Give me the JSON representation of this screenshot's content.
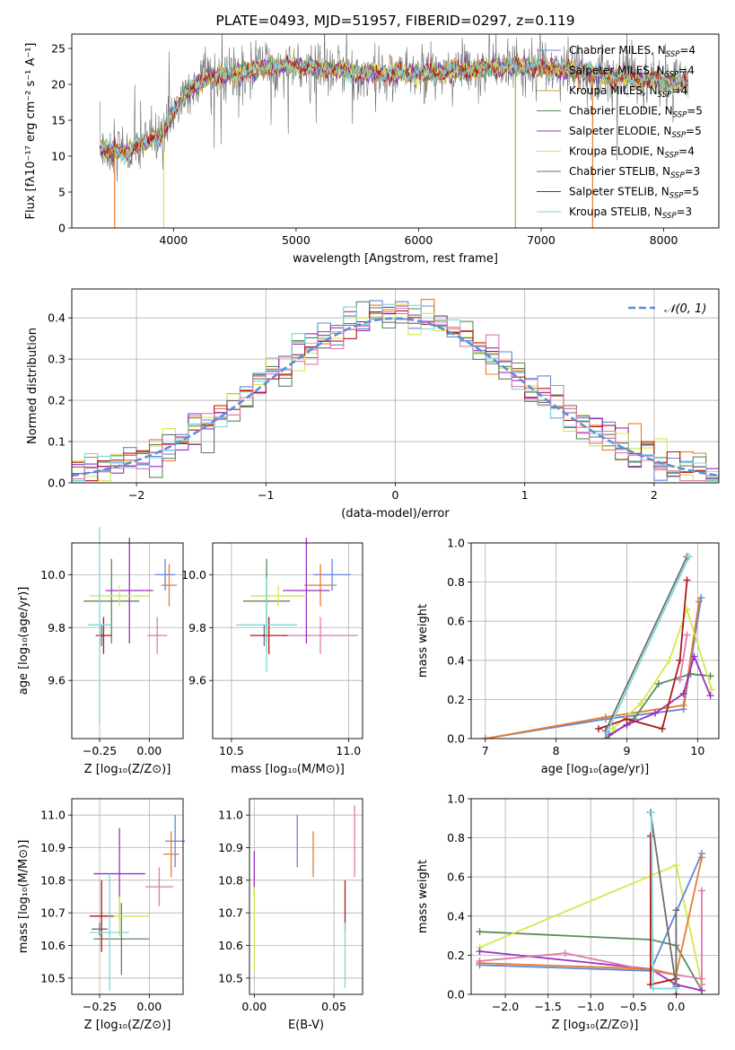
{
  "title": "PLATE=0493, MJD=51957, FIBERID=0297, z=0.119",
  "colors": {
    "Chabrier MILES": "#5f86d6",
    "Salpeter MILES": "#e87b2c",
    "Kroupa MILES": "#c9a236",
    "Chabrier ELODIE": "#5a8a5a",
    "Salpeter ELODIE": "#9b2fc0",
    "Kroupa ELODIE": "#d4e84a",
    "Chabrier STELIB": "#6e6e6e",
    "Salpeter STELIB": "#b01818",
    "Kroupa STELIB": "#7fd6d9",
    "normal": "#5b8fd8",
    "pink": "#e07aaf"
  },
  "chart_data": [
    {
      "type": "line",
      "title": "PLATE=0493, MJD=51957, FIBERID=0297, z=0.119",
      "xlabel": "wavelength [Angstrom, rest frame]",
      "ylabel": "Flux [fλ10⁻¹⁷ erg cm⁻² s⁻¹ A⁻¹]",
      "xlim": [
        3170,
        8450
      ],
      "ylim": [
        0,
        27
      ],
      "xticks": [
        "4000",
        "5000",
        "6000",
        "7000",
        "8000"
      ],
      "yticks": [
        "0",
        "5",
        "10",
        "15",
        "20",
        "25"
      ],
      "continuum_x": [
        3400,
        3600,
        3900,
        4100,
        4300,
        4500,
        4800,
        5000,
        5300,
        5600,
        6000,
        6400,
        6800,
        7200,
        7600,
        8000,
        8200
      ],
      "continuum_y": [
        11,
        10.5,
        13,
        19,
        21,
        21.5,
        22.5,
        22.5,
        22,
        21.5,
        21.5,
        22,
        22.5,
        22,
        21,
        20.5,
        20
      ],
      "legend_position": "upper right",
      "series": [
        {
          "name": "Chabrier MILES, N_SSP=4"
        },
        {
          "name": "Salpeter MILES, N_SSP=4"
        },
        {
          "name": "Kroupa MILES, N_SSP=4"
        },
        {
          "name": "Chabrier ELODIE, N_SSP=5"
        },
        {
          "name": "Salpeter ELODIE, N_SSP=5"
        },
        {
          "name": "Kroupa ELODIE, N_SSP=4"
        },
        {
          "name": "Chabrier STELIB, N_SSP=3"
        },
        {
          "name": "Salpeter STELIB, N_SSP=5"
        },
        {
          "name": "Kroupa STELIB, N_SSP=3"
        }
      ]
    },
    {
      "type": "histogram",
      "xlabel": "(data-model)/error",
      "ylabel": "Normed distribution",
      "xlim": [
        -2.5,
        2.5
      ],
      "ylim": [
        0,
        0.47
      ],
      "xticks": [
        "−2",
        "−1",
        "0",
        "1",
        "2"
      ],
      "yticks": [
        "0.0",
        "0.1",
        "0.2",
        "0.3",
        "0.4"
      ],
      "bin_width": 0.1,
      "reference": {
        "name": "N(0,1)",
        "sigma": 1
      },
      "grid": true
    },
    {
      "type": "errorbar",
      "xlabel": "Z [log₁₀(Z/Z⊙)]",
      "ylabel": "age  [log₁₀(age/yr)]",
      "xlim": [
        -0.39,
        0.17
      ],
      "ylim": [
        9.38,
        10.12
      ],
      "xticks": [
        "−0.25",
        "0.00"
      ],
      "yticks": [
        "9.6",
        "9.8",
        "10.0"
      ],
      "points": [
        {
          "series": "Chabrier MILES",
          "x": 0.08,
          "y": 10.0,
          "xerr": 0.05,
          "yerr": 0.06
        },
        {
          "series": "Salpeter MILES",
          "x": 0.1,
          "y": 9.96,
          "xerr": 0.04,
          "yerr": 0.08
        },
        {
          "series": "pink",
          "x": 0.04,
          "y": 9.77,
          "xerr": 0.05,
          "yerr": 0.07
        },
        {
          "series": "Chabrier ELODIE",
          "x": -0.19,
          "y": 9.9,
          "xerr": 0.14,
          "yerr": 0.16
        },
        {
          "series": "Salpeter ELODIE",
          "x": -0.1,
          "y": 9.94,
          "xerr": 0.12,
          "yerr": 0.2
        },
        {
          "series": "Kroupa ELODIE",
          "x": -0.15,
          "y": 9.92,
          "xerr": 0.15,
          "yerr": 0.04
        },
        {
          "series": "Chabrier STELIB",
          "x": -0.24,
          "y": 9.77,
          "xerr": 0.01,
          "yerr": 0.04
        },
        {
          "series": "Salpeter STELIB",
          "x": -0.23,
          "y": 9.77,
          "xerr": 0.04,
          "yerr": 0.07
        },
        {
          "series": "Kroupa STELIB",
          "x": -0.25,
          "y": 9.81,
          "xerr": 0.06,
          "yerr": 0.37
        }
      ]
    },
    {
      "type": "errorbar",
      "xlabel": "mass [log₁₀(M/M⊙)]",
      "xlim": [
        10.42,
        11.06
      ],
      "ylim": [
        9.38,
        10.12
      ],
      "xticks": [
        "10.5",
        "11.0"
      ],
      "yticks": [
        "9.6",
        "9.8",
        "10.0"
      ],
      "points": [
        {
          "series": "Chabrier MILES",
          "x": 10.93,
          "y": 10.0,
          "xerr": 0.08,
          "yerr": 0.06
        },
        {
          "series": "Salpeter MILES",
          "x": 10.88,
          "y": 9.96,
          "xerr": 0.07,
          "yerr": 0.08
        },
        {
          "series": "pink",
          "x": 10.88,
          "y": 9.77,
          "xerr": 0.16,
          "yerr": 0.07
        },
        {
          "series": "Chabrier ELODIE",
          "x": 10.65,
          "y": 9.9,
          "xerr": 0.1,
          "yerr": 0.16
        },
        {
          "series": "Salpeter ELODIE",
          "x": 10.82,
          "y": 9.94,
          "xerr": 0.1,
          "yerr": 0.2
        },
        {
          "series": "Kroupa ELODIE",
          "x": 10.7,
          "y": 9.92,
          "xerr": 0.12,
          "yerr": 0.04
        },
        {
          "series": "Chabrier STELIB",
          "x": 10.64,
          "y": 9.77,
          "xerr": 0.01,
          "yerr": 0.04
        },
        {
          "series": "Salpeter STELIB",
          "x": 10.66,
          "y": 9.77,
          "xerr": 0.08,
          "yerr": 0.07
        },
        {
          "series": "Kroupa STELIB",
          "x": 10.65,
          "y": 9.81,
          "xerr": 0.13,
          "yerr": 0.18
        }
      ]
    },
    {
      "type": "line",
      "xlabel": "age  [log₁₀(age/yr)]",
      "ylabel": "mass weight",
      "xlim": [
        6.8,
        10.3
      ],
      "ylim": [
        0,
        1.0
      ],
      "xticks": [
        "7",
        "8",
        "9",
        "10"
      ],
      "yticks": [
        "0.0",
        "0.2",
        "0.4",
        "0.6",
        "0.8",
        "1.0"
      ],
      "lines": [
        {
          "series": "Chabrier MILES",
          "x": [
            7.0,
            8.7,
            9.8,
            10.05
          ],
          "y": [
            0.0,
            0.1,
            0.15,
            0.72
          ]
        },
        {
          "series": "Salpeter MILES",
          "x": [
            7.0,
            8.7,
            9.8,
            10.02
          ],
          "y": [
            0.0,
            0.11,
            0.17,
            0.7
          ]
        },
        {
          "series": "Chabrier ELODIE",
          "x": [
            8.7,
            9.1,
            9.45,
            9.9,
            10.18
          ],
          "y": [
            0.0,
            0.1,
            0.28,
            0.33,
            0.32
          ]
        },
        {
          "series": "Salpeter ELODIE",
          "x": [
            8.75,
            9.0,
            9.4,
            9.8,
            9.95,
            10.18
          ],
          "y": [
            0.02,
            0.07,
            0.13,
            0.23,
            0.42,
            0.22
          ]
        },
        {
          "series": "Kroupa ELODIE",
          "x": [
            8.8,
            9.2,
            9.6,
            9.85,
            10.2
          ],
          "y": [
            0.05,
            0.18,
            0.4,
            0.66,
            0.25
          ]
        },
        {
          "series": "Salpeter STELIB",
          "x": [
            8.6,
            9.0,
            9.5,
            9.75,
            9.85
          ],
          "y": [
            0.05,
            0.1,
            0.05,
            0.4,
            0.81
          ]
        },
        {
          "series": "Chabrier STELIB",
          "x": [
            8.7,
            9.85
          ],
          "y": [
            0.04,
            0.93
          ]
        },
        {
          "series": "Kroupa STELIB",
          "x": [
            8.72,
            9.88
          ],
          "y": [
            0.03,
            0.93
          ]
        },
        {
          "series": "pink",
          "x": [
            9.75,
            9.85
          ],
          "y": [
            0.3,
            0.53
          ]
        }
      ]
    },
    {
      "type": "errorbar",
      "xlabel": "Z [log₁₀(Z/Z⊙)]",
      "ylabel": "mass [log₁₀(M/M⊙)]",
      "xlim": [
        -0.39,
        0.17
      ],
      "ylim": [
        10.45,
        11.05
      ],
      "xticks": [
        "−0.25",
        "0.00"
      ],
      "yticks": [
        "10.5",
        "10.6",
        "10.7",
        "10.8",
        "10.9",
        "11.0"
      ],
      "points": [
        {
          "series": "Chabrier MILES",
          "x": 0.13,
          "y": 10.92,
          "xerr": 0.05,
          "yerr": 0.08
        },
        {
          "series": "Salpeter MILES",
          "x": 0.11,
          "y": 10.88,
          "xerr": 0.04,
          "yerr": 0.07
        },
        {
          "series": "pink",
          "x": 0.05,
          "y": 10.78,
          "xerr": 0.07,
          "yerr": 0.06
        },
        {
          "series": "Chabrier ELODIE",
          "x": -0.14,
          "y": 10.62,
          "xerr": 0.14,
          "yerr": 0.11
        },
        {
          "series": "Salpeter ELODIE",
          "x": -0.15,
          "y": 10.82,
          "xerr": 0.13,
          "yerr": 0.14
        },
        {
          "series": "Kroupa ELODIE",
          "x": -0.15,
          "y": 10.69,
          "xerr": 0.15,
          "yerr": 0.06
        },
        {
          "series": "Chabrier STELIB",
          "x": -0.25,
          "y": 10.65,
          "xerr": 0.04,
          "yerr": 0.02
        },
        {
          "series": "Salpeter STELIB",
          "x": -0.24,
          "y": 10.69,
          "xerr": 0.06,
          "yerr": 0.11
        },
        {
          "series": "Kroupa STELIB",
          "x": -0.2,
          "y": 10.64,
          "xerr": 0.1,
          "yerr": 0.18
        }
      ]
    },
    {
      "type": "errorbar",
      "xlabel": "E(B-V)",
      "xlim": [
        -0.003,
        0.068
      ],
      "ylim": [
        10.45,
        11.05
      ],
      "xticks": [
        "0.00",
        "0.05"
      ],
      "yticks": [
        "10.5",
        "10.6",
        "10.7",
        "10.8",
        "10.9",
        "11.0"
      ],
      "points": [
        {
          "series": "Chabrier MILES",
          "x": 0.027,
          "y": 10.92,
          "xerr": 0,
          "yerr": 0.08
        },
        {
          "series": "Salpeter MILES",
          "x": 0.037,
          "y": 10.88,
          "xerr": 0,
          "yerr": 0.07
        },
        {
          "series": "pink",
          "x": 0.063,
          "y": 10.92,
          "xerr": 0,
          "yerr": 0.11
        },
        {
          "series": "Salpeter ELODIE",
          "x": 0.0,
          "y": 10.82,
          "xerr": 0,
          "yerr": 0.07
        },
        {
          "series": "Kroupa ELODIE",
          "x": 0.0,
          "y": 10.65,
          "xerr": 0,
          "yerr": 0.13
        },
        {
          "series": "Salpeter STELIB",
          "x": 0.057,
          "y": 10.72,
          "xerr": 0,
          "yerr": 0.08
        },
        {
          "series": "Kroupa STELIB",
          "x": 0.057,
          "y": 10.57,
          "xerr": 0,
          "yerr": 0.1
        }
      ]
    },
    {
      "type": "line",
      "xlabel": "Z [log₁₀(Z/Z⊙)]",
      "ylabel": "mass weight",
      "xlim": [
        -2.4,
        0.5
      ],
      "ylim": [
        0,
        1.0
      ],
      "xticks": [
        "−2.0",
        "−1.5",
        "−1.0",
        "−0.5",
        "0.0"
      ],
      "yticks": [
        "0.0",
        "0.2",
        "0.4",
        "0.6",
        "0.8",
        "1.0"
      ],
      "lines": [
        {
          "series": "Chabrier ELODIE",
          "x": [
            -2.3,
            -0.3,
            0.0,
            0.3
          ],
          "y": [
            0.32,
            0.28,
            0.25,
            0.02
          ]
        },
        {
          "series": "Kroupa ELODIE",
          "x": [
            -2.3,
            0.0,
            0.3
          ],
          "y": [
            0.24,
            0.66,
            0.05
          ]
        },
        {
          "series": "Salpeter ELODIE",
          "x": [
            -2.3,
            -0.3,
            0.0,
            0.3
          ],
          "y": [
            0.22,
            0.13,
            0.05,
            0.02
          ]
        },
        {
          "series": "pink",
          "x": [
            -2.3,
            -1.3,
            -0.3,
            0.3
          ],
          "y": [
            0.17,
            0.21,
            0.12,
            0.08
          ]
        },
        {
          "series": "Chabrier MILES",
          "x": [
            -2.3,
            -0.3,
            0.3
          ],
          "y": [
            0.15,
            0.12,
            0.72
          ]
        },
        {
          "series": "Salpeter MILES",
          "x": [
            -2.3,
            -0.3,
            0.0,
            0.3
          ],
          "y": [
            0.16,
            0.13,
            0.1,
            0.7
          ]
        },
        {
          "series": "Salpeter STELIB",
          "x": [
            -0.3,
            -0.3,
            0.0,
            0.0
          ],
          "y": [
            0.81,
            0.05,
            0.08,
            0.0
          ]
        },
        {
          "series": "Chabrier STELIB",
          "x": [
            -0.3,
            0.0,
            0.0
          ],
          "y": [
            0.93,
            0.04,
            0.43
          ]
        },
        {
          "series": "Kroupa STELIB",
          "x": [
            -0.29,
            -0.27,
            0.0
          ],
          "y": [
            0.93,
            0.03,
            0.03
          ]
        },
        {
          "series": "pink",
          "x": [
            0.3,
            0.3
          ],
          "y": [
            0.05,
            0.53
          ]
        }
      ]
    }
  ]
}
